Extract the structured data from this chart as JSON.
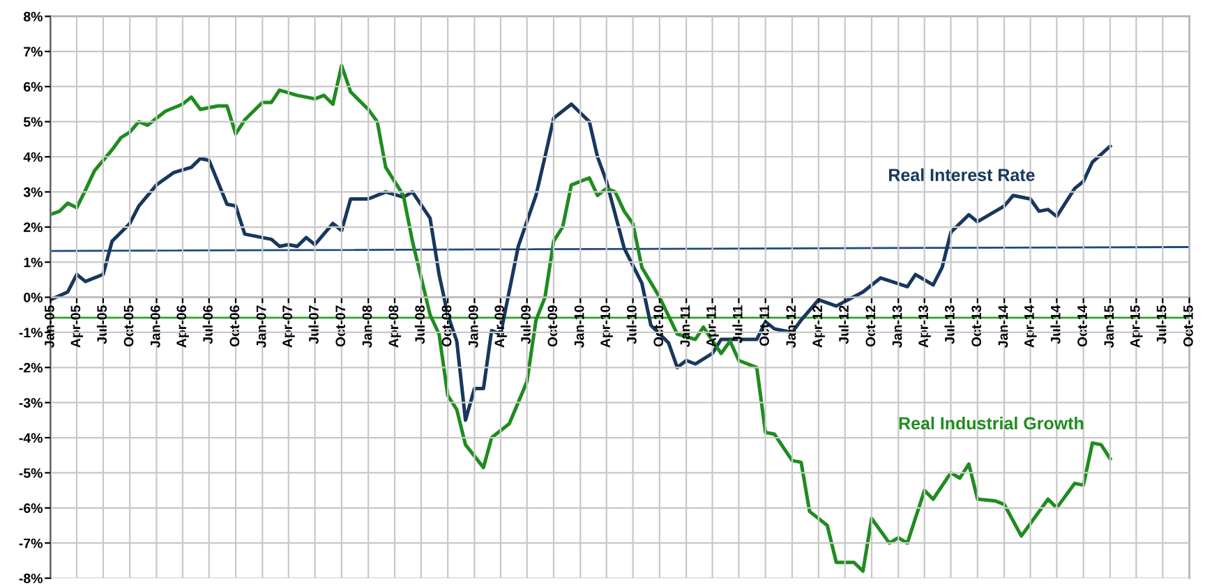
{
  "chart_data": {
    "type": "line",
    "series": [
      {
        "name": "Real Interest Rate",
        "color": "#17375e",
        "x": [
          "2005-01",
          "2005-03",
          "2005-04",
          "2005-05",
          "2005-07",
          "2005-08",
          "2005-10",
          "2005-11",
          "2006-01",
          "2006-03",
          "2006-05",
          "2006-06",
          "2006-07",
          "2006-09",
          "2006-10",
          "2006-11",
          "2007-01",
          "2007-02",
          "2007-03",
          "2007-04",
          "2007-05",
          "2007-06",
          "2007-07",
          "2007-09",
          "2007-10",
          "2007-11",
          "2008-01",
          "2008-03",
          "2008-05",
          "2008-06",
          "2008-08",
          "2008-09",
          "2008-10",
          "2008-11",
          "2008-12",
          "2009-01",
          "2009-02",
          "2009-03",
          "2009-04",
          "2009-06",
          "2009-08",
          "2009-09",
          "2009-10",
          "2009-12",
          "2010-01",
          "2010-02",
          "2010-03",
          "2010-04",
          "2010-06",
          "2010-08",
          "2010-09",
          "2010-11",
          "2010-12",
          "2011-01",
          "2011-02",
          "2011-04",
          "2011-05",
          "2011-07",
          "2011-09",
          "2011-10",
          "2011-11",
          "2012-01",
          "2012-02",
          "2012-04",
          "2012-06",
          "2012-09",
          "2012-11",
          "2013-02",
          "2013-03",
          "2013-05",
          "2013-06",
          "2013-07",
          "2013-09",
          "2013-10",
          "2014-01",
          "2014-02",
          "2014-04",
          "2014-05",
          "2014-06",
          "2014-07",
          "2014-09",
          "2014-10",
          "2014-11",
          "2015-01"
        ],
        "values": [
          -0.07,
          0.15,
          0.65,
          0.45,
          0.65,
          1.6,
          2.1,
          2.6,
          3.2,
          3.55,
          3.7,
          3.95,
          3.9,
          2.65,
          2.6,
          1.8,
          1.7,
          1.65,
          1.45,
          1.5,
          1.45,
          1.7,
          1.5,
          2.1,
          1.9,
          2.8,
          2.8,
          3.0,
          2.85,
          3.0,
          2.25,
          0.65,
          -0.5,
          -1.25,
          -3.5,
          -2.6,
          -2.6,
          -0.95,
          -1.05,
          1.45,
          2.9,
          4.0,
          5.1,
          5.5,
          5.25,
          5.0,
          4.0,
          3.3,
          1.4,
          0.4,
          -0.8,
          -1.3,
          -2.0,
          -1.8,
          -1.9,
          -1.6,
          -1.2,
          -1.2,
          -1.2,
          -0.7,
          -0.9,
          -1.0,
          -0.65,
          -0.07,
          -0.25,
          0.15,
          0.55,
          0.3,
          0.65,
          0.35,
          0.85,
          1.85,
          2.35,
          2.15,
          2.6,
          2.9,
          2.8,
          2.45,
          2.5,
          2.3,
          3.1,
          3.3,
          3.85,
          4.3
        ]
      },
      {
        "name": "Real Industrial Growth",
        "color": "#1e8c1e",
        "x": [
          "2005-01",
          "2005-02",
          "2005-03",
          "2005-04",
          "2005-05",
          "2005-06",
          "2005-08",
          "2005-09",
          "2005-10",
          "2005-11",
          "2005-12",
          "2006-02",
          "2006-04",
          "2006-05",
          "2006-06",
          "2006-08",
          "2006-09",
          "2006-10",
          "2006-11",
          "2007-01",
          "2007-02",
          "2007-03",
          "2007-05",
          "2007-06",
          "2007-07",
          "2007-08",
          "2007-09",
          "2007-10",
          "2007-11",
          "2008-01",
          "2008-02",
          "2008-03",
          "2008-05",
          "2008-06",
          "2008-08",
          "2008-09",
          "2008-10",
          "2008-11",
          "2008-12",
          "2009-02",
          "2009-03",
          "2009-05",
          "2009-07",
          "2009-08",
          "2009-09",
          "2009-10",
          "2009-11",
          "2009-12",
          "2010-02",
          "2010-03",
          "2010-04",
          "2010-05",
          "2010-06",
          "2010-07",
          "2010-08",
          "2010-10",
          "2010-12",
          "2011-02",
          "2011-03",
          "2011-05",
          "2011-06",
          "2011-07",
          "2011-09",
          "2011-10",
          "2011-11",
          "2012-01",
          "2012-02",
          "2012-03",
          "2012-05",
          "2012-06",
          "2012-08",
          "2012-09",
          "2012-10",
          "2012-12",
          "2013-01",
          "2013-02",
          "2013-04",
          "2013-05",
          "2013-07",
          "2013-08",
          "2013-09",
          "2013-10",
          "2013-12",
          "2014-01",
          "2014-03",
          "2014-06",
          "2014-07",
          "2014-09",
          "2014-10",
          "2014-11",
          "2014-12",
          "2015-01"
        ],
        "values": [
          2.36,
          2.45,
          2.68,
          2.55,
          3.05,
          3.6,
          4.2,
          4.55,
          4.7,
          5.0,
          4.9,
          5.3,
          5.5,
          5.7,
          5.35,
          5.45,
          5.45,
          4.65,
          5.05,
          5.55,
          5.55,
          5.9,
          5.75,
          5.7,
          5.65,
          5.75,
          5.5,
          6.6,
          5.85,
          5.35,
          5.0,
          3.7,
          2.9,
          1.6,
          -0.5,
          -1.05,
          -2.8,
          -3.2,
          -4.2,
          -4.85,
          -4.0,
          -3.6,
          -2.4,
          -0.65,
          0,
          1.6,
          2.0,
          3.2,
          3.4,
          2.9,
          3.1,
          3.0,
          2.45,
          2.1,
          0.85,
          0,
          -1.05,
          -1.2,
          -0.85,
          -1.6,
          -1.25,
          -1.8,
          -2.0,
          -3.85,
          -3.9,
          -4.65,
          -4.7,
          -6.1,
          -6.5,
          -7.55,
          -7.55,
          -7.8,
          -6.3,
          -7.0,
          -6.85,
          -7.0,
          -5.5,
          -5.75,
          -5.0,
          -5.15,
          -4.75,
          -5.75,
          -5.8,
          -5.9,
          -6.8,
          -5.75,
          -6.0,
          -5.3,
          -5.35,
          -4.15,
          -4.2,
          -4.6
        ]
      },
      {
        "color": "#1f497d",
        "x": [
          "2005-01",
          "2015-10"
        ],
        "values": [
          1.32,
          1.43
        ]
      },
      {
        "color": "#33a02c",
        "x": [
          "2005-01",
          "2015-10"
        ],
        "values": [
          -0.58,
          -0.58
        ]
      }
    ],
    "xlim": [
      "2005-01",
      "2015-10"
    ],
    "xticks": [
      {
        "value": "2005-01",
        "label": "Jan-05"
      },
      {
        "value": "2005-04",
        "label": "Apr-05"
      },
      {
        "value": "2005-07",
        "label": "Jul-05"
      },
      {
        "value": "2005-10",
        "label": "Oct-05"
      },
      {
        "value": "2006-01",
        "label": "Jan-06"
      },
      {
        "value": "2006-04",
        "label": "Apr-06"
      },
      {
        "value": "2006-07",
        "label": "Jul-06"
      },
      {
        "value": "2006-10",
        "label": "Oct-06"
      },
      {
        "value": "2007-01",
        "label": "Jan-07"
      },
      {
        "value": "2007-04",
        "label": "Apr-07"
      },
      {
        "value": "2007-07",
        "label": "Jul-07"
      },
      {
        "value": "2007-10",
        "label": "Oct-07"
      },
      {
        "value": "2008-01",
        "label": "Jan-08"
      },
      {
        "value": "2008-04",
        "label": "Apr-08"
      },
      {
        "value": "2008-07",
        "label": "Jul-08"
      },
      {
        "value": "2008-10",
        "label": "Oct-08"
      },
      {
        "value": "2009-01",
        "label": "Jan-09"
      },
      {
        "value": "2009-04",
        "label": "Apr-09"
      },
      {
        "value": "2009-07",
        "label": "Jul-09"
      },
      {
        "value": "2009-10",
        "label": "Oct-09"
      },
      {
        "value": "2010-01",
        "label": "Jan-10"
      },
      {
        "value": "2010-04",
        "label": "Apr-10"
      },
      {
        "value": "2010-07",
        "label": "Jul-10"
      },
      {
        "value": "2010-10",
        "label": "Oct-10"
      },
      {
        "value": "2011-01",
        "label": "Jan-11"
      },
      {
        "value": "2011-04",
        "label": "Apr-11"
      },
      {
        "value": "2011-07",
        "label": "Jul-11"
      },
      {
        "value": "2011-10",
        "label": "Oct-11"
      },
      {
        "value": "2012-01",
        "label": "Jan-12"
      },
      {
        "value": "2012-04",
        "label": "Apr-12"
      },
      {
        "value": "2012-07",
        "label": "Jul-12"
      },
      {
        "value": "2012-10",
        "label": "Oct-12"
      },
      {
        "value": "2013-01",
        "label": "Jan-13"
      },
      {
        "value": "2013-04",
        "label": "Apr-13"
      },
      {
        "value": "2013-07",
        "label": "Jul-13"
      },
      {
        "value": "2013-10",
        "label": "Oct-13"
      },
      {
        "value": "2014-01",
        "label": "Jan-14"
      },
      {
        "value": "2014-04",
        "label": "Apr-14"
      },
      {
        "value": "2014-07",
        "label": "Jul-14"
      },
      {
        "value": "2014-10",
        "label": "Oct-14"
      },
      {
        "value": "2015-01",
        "label": "Jan-15"
      },
      {
        "value": "2015-04",
        "label": "Apr-15"
      },
      {
        "value": "2015-07",
        "label": "Jul-15"
      },
      {
        "value": "2015-10",
        "label": "Oct-15"
      }
    ],
    "ylim": [
      -8,
      8
    ],
    "yticks": [
      {
        "value": -8,
        "label": "-8%"
      },
      {
        "value": -7,
        "label": "-7%"
      },
      {
        "value": -6,
        "label": "-6%"
      },
      {
        "value": -5,
        "label": "-5%"
      },
      {
        "value": -4,
        "label": "-4%"
      },
      {
        "value": -3,
        "label": "-3%"
      },
      {
        "value": -2,
        "label": "-2%"
      },
      {
        "value": -1,
        "label": "-1%"
      },
      {
        "value": 0,
        "label": "0%"
      },
      {
        "value": 1,
        "label": "1%"
      },
      {
        "value": 2,
        "label": "2%"
      },
      {
        "value": 3,
        "label": "3%"
      },
      {
        "value": 4,
        "label": "4%"
      },
      {
        "value": 5,
        "label": "5%"
      },
      {
        "value": 6,
        "label": "6%"
      },
      {
        "value": 7,
        "label": "7%"
      },
      {
        "value": 8,
        "label": "8%"
      }
    ],
    "grid": true,
    "legend": false,
    "marker": "none",
    "line_style": "solid"
  }
}
